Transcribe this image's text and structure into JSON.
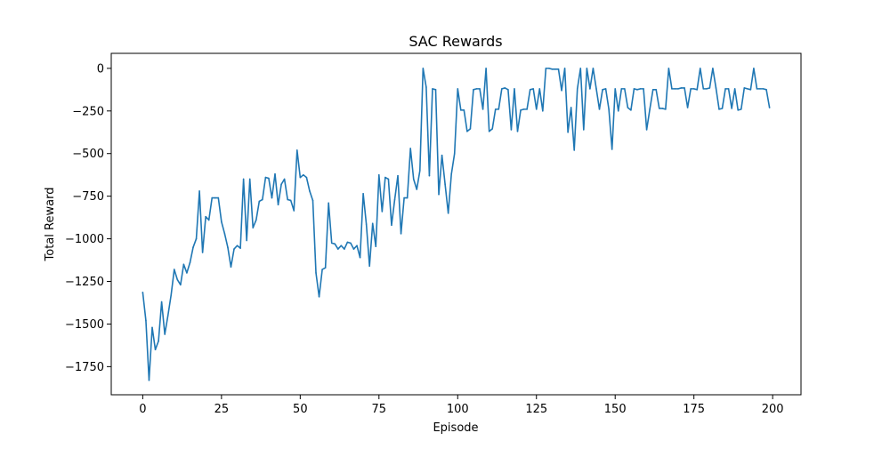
{
  "chart_data": {
    "type": "line",
    "title": "SAC Rewards",
    "xlabel": "Episode",
    "ylabel": "Total Reward",
    "xlim": [
      -10,
      209
    ],
    "ylim": [
      -1915,
      88
    ],
    "xticks": [
      0,
      25,
      50,
      75,
      100,
      125,
      150,
      175,
      200
    ],
    "xtick_labels": [
      "0",
      "25",
      "50",
      "75",
      "100",
      "125",
      "150",
      "175",
      "200"
    ],
    "yticks": [
      0,
      -250,
      -500,
      -750,
      -1000,
      -1250,
      -1500,
      -1750
    ],
    "ytick_labels": [
      "0",
      "−250",
      "−500",
      "−750",
      "−1000",
      "−1250",
      "−1500",
      "−1750"
    ],
    "grid": false,
    "legend": "none",
    "series": [
      {
        "color": "#1f77b4",
        "x_start": 0,
        "x_step": 1,
        "values": [
          -1315,
          -1480,
          -1830,
          -1520,
          -1650,
          -1600,
          -1370,
          -1560,
          -1450,
          -1330,
          -1180,
          -1240,
          -1270,
          -1150,
          -1200,
          -1140,
          -1050,
          -1000,
          -720,
          -1080,
          -870,
          -890,
          -760,
          -760,
          -760,
          -900,
          -970,
          -1050,
          -1165,
          -1060,
          -1040,
          -1055,
          -650,
          -1010,
          -650,
          -935,
          -890,
          -780,
          -770,
          -640,
          -645,
          -760,
          -620,
          -800,
          -680,
          -650,
          -770,
          -775,
          -835,
          -480,
          -640,
          -625,
          -640,
          -720,
          -775,
          -1200,
          -1340,
          -1180,
          -1170,
          -790,
          -1025,
          -1030,
          -1060,
          -1040,
          -1060,
          -1020,
          -1025,
          -1060,
          -1040,
          -1110,
          -735,
          -915,
          -1160,
          -910,
          -1045,
          -625,
          -840,
          -640,
          -650,
          -920,
          -770,
          -630,
          -970,
          -760,
          -760,
          -470,
          -650,
          -710,
          -600,
          0,
          -110,
          -630,
          -120,
          -125,
          -740,
          -510,
          -680,
          -850,
          -620,
          -500,
          -120,
          -245,
          -245,
          -370,
          -355,
          -125,
          -120,
          -120,
          -240,
          0,
          -370,
          -355,
          -240,
          -240,
          -120,
          -115,
          -125,
          -360,
          -120,
          -370,
          -245,
          -240,
          -240,
          -125,
          -120,
          -240,
          -120,
          -250,
          0,
          0,
          -5,
          -5,
          -5,
          -130,
          0,
          -375,
          -230,
          -480,
          -120,
          0,
          -360,
          0,
          -120,
          0,
          -120,
          -240,
          -125,
          -120,
          -240,
          -475,
          -120,
          -250,
          -120,
          -120,
          -230,
          -245,
          -120,
          -125,
          -120,
          -120,
          -360,
          -240,
          -125,
          -125,
          -235,
          -235,
          -240,
          0,
          -120,
          -120,
          -120,
          -115,
          -115,
          -230,
          -120,
          -120,
          -125,
          0,
          -120,
          -120,
          -115,
          0,
          -115,
          -240,
          -235,
          -120,
          -120,
          -235,
          -120,
          -245,
          -240,
          -115,
          -120,
          -125,
          0,
          -120,
          -120,
          -120,
          -125,
          -230
        ]
      }
    ]
  }
}
